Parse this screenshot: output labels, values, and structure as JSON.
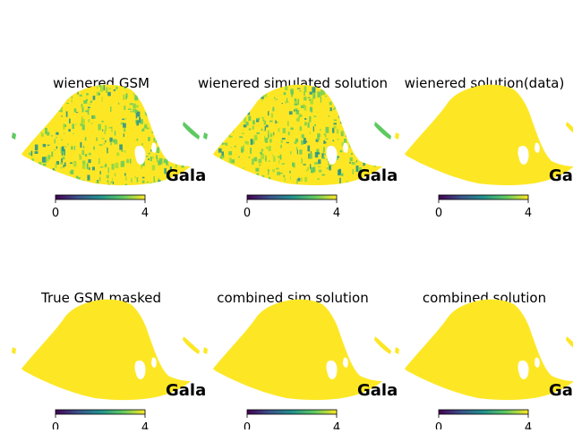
{
  "figure": {
    "colormap": "viridis",
    "colormap_stops": [
      "#440154",
      "#3b528b",
      "#21918c",
      "#5ec962",
      "#fde725"
    ],
    "background": "#ffffff",
    "corner_label": "Gala"
  },
  "chart_data": [
    {
      "type": "heatmap",
      "title": "wienered GSM",
      "projection": "mollweide (masked sky map)",
      "colorbar": {
        "vmin": 0,
        "vmax": 4,
        "tick_labels": [
          "0",
          "4"
        ]
      },
      "fill": "mixed (mostly high values with lower-value streaks)",
      "annotation": "Gala"
    },
    {
      "type": "heatmap",
      "title": "wienered simulated solution",
      "projection": "mollweide (masked sky map)",
      "colorbar": {
        "vmin": 0,
        "vmax": 4,
        "tick_labels": [
          "0",
          "4"
        ]
      },
      "fill": "mixed (mostly high values with lower-value streaks)",
      "annotation": "Gala"
    },
    {
      "type": "heatmap",
      "title": "wienered solution(data)",
      "projection": "mollweide (masked sky map)",
      "colorbar": {
        "vmin": 0,
        "vmax": 4,
        "tick_labels": [
          "0",
          "4"
        ]
      },
      "fill": "uniform at/above colorbar max (4)",
      "annotation": "Gala"
    },
    {
      "type": "heatmap",
      "title": "True GSM masked",
      "projection": "mollweide (masked sky map)",
      "colorbar": {
        "vmin": 0,
        "vmax": 4,
        "tick_labels": [
          "0",
          "4"
        ]
      },
      "fill": "uniform at/above colorbar max (4)",
      "annotation": "Gala"
    },
    {
      "type": "heatmap",
      "title": "combined sim solution",
      "projection": "mollweide (masked sky map)",
      "colorbar": {
        "vmin": 0,
        "vmax": 4,
        "tick_labels": [
          "0",
          "4"
        ]
      },
      "fill": "uniform at/above colorbar max (4)",
      "annotation": "Gala"
    },
    {
      "type": "heatmap",
      "title": "combined solution",
      "projection": "mollweide (masked sky map)",
      "colorbar": {
        "vmin": 0,
        "vmax": 4,
        "tick_labels": [
          "0",
          "4"
        ]
      },
      "fill": "uniform at/above colorbar max (4)",
      "annotation": "Gala"
    }
  ]
}
